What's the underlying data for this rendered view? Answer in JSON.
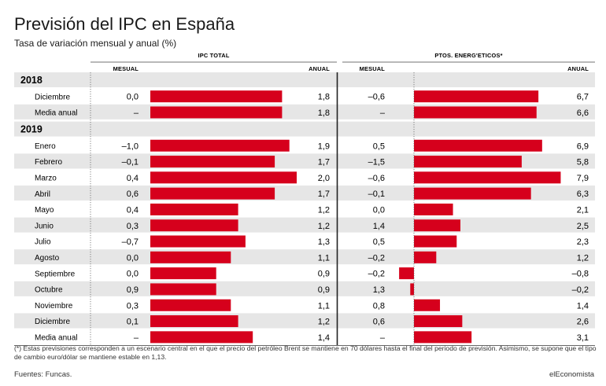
{
  "title": "Previsión del IPC en España",
  "subtitle": "Tasa de variación mensual y anual (%)",
  "footnote": "(*) Estas previsiones corresponden a un escenario central en el que el precio del petróleo Brent se mantiene en 70 dólares hasta el final del periodo de previsión. Asimismo, se supone que el tipo de cambio euro/dólar se mantiene estable en 1,13.",
  "source": "Fuentes: Funcas.",
  "brand": "elEconomista",
  "colors": {
    "bar": "#d6001c",
    "band": "#e6e6e6",
    "rule": "#222222"
  },
  "chart_data": {
    "type": "bar",
    "groups": [
      {
        "name": "IPC TOTAL",
        "col_mensual": "MESUAL",
        "col_anual": "ANUAL"
      },
      {
        "name": "PTOS. ENERG'ETICOS*",
        "col_mensual": "MESUAL",
        "col_anual": "ANUAL"
      }
    ],
    "sections": [
      {
        "year": "2018",
        "rows": [
          {
            "label": "Diciembre",
            "ipc_mensual": "0,0",
            "ipc_anual": 1.8,
            "en_mensual": "–0,6",
            "en_anual": 6.7
          },
          {
            "label": "Media anual",
            "ipc_mensual": "–",
            "ipc_anual": 1.8,
            "en_mensual": "–",
            "en_anual": 6.6
          }
        ]
      },
      {
        "year": "2019",
        "rows": [
          {
            "label": "Enero",
            "ipc_mensual": "–1,0",
            "ipc_anual": 1.9,
            "en_mensual": "0,5",
            "en_anual": 6.9
          },
          {
            "label": "Febrero",
            "ipc_mensual": "–0,1",
            "ipc_anual": 1.7,
            "en_mensual": "–1,5",
            "en_anual": 5.8
          },
          {
            "label": "Marzo",
            "ipc_mensual": "0,4",
            "ipc_anual": 2.0,
            "en_mensual": "–0,6",
            "en_anual": 7.9
          },
          {
            "label": "Abril",
            "ipc_mensual": "0,6",
            "ipc_anual": 1.7,
            "en_mensual": "–0,1",
            "en_anual": 6.3
          },
          {
            "label": "Mayo",
            "ipc_mensual": "0,4",
            "ipc_anual": 1.2,
            "en_mensual": "0,0",
            "en_anual": 2.1
          },
          {
            "label": "Junio",
            "ipc_mensual": "0,3",
            "ipc_anual": 1.2,
            "en_mensual": "1,4",
            "en_anual": 2.5
          },
          {
            "label": "Julio",
            "ipc_mensual": "–0,7",
            "ipc_anual": 1.3,
            "en_mensual": "0,5",
            "en_anual": 2.3
          },
          {
            "label": "Agosto",
            "ipc_mensual": "0,0",
            "ipc_anual": 1.1,
            "en_mensual": "–0,2",
            "en_anual": 1.2
          },
          {
            "label": "Septiembre",
            "ipc_mensual": "0,0",
            "ipc_anual": 0.9,
            "en_mensual": "–0,2",
            "en_anual": -0.8
          },
          {
            "label": "Octubre",
            "ipc_mensual": "0,9",
            "ipc_anual": 0.9,
            "en_mensual": "1,3",
            "en_anual": -0.2
          },
          {
            "label": "Noviembre",
            "ipc_mensual": "0,3",
            "ipc_anual": 1.1,
            "en_mensual": "0,8",
            "en_anual": 1.4
          },
          {
            "label": "Diciembre",
            "ipc_mensual": "0,1",
            "ipc_anual": 1.2,
            "en_mensual": "0,6",
            "en_anual": 2.6
          },
          {
            "label": "Media anual",
            "ipc_mensual": "–",
            "ipc_anual": 1.4,
            "en_mensual": "–",
            "en_anual": 3.1
          }
        ]
      }
    ]
  }
}
